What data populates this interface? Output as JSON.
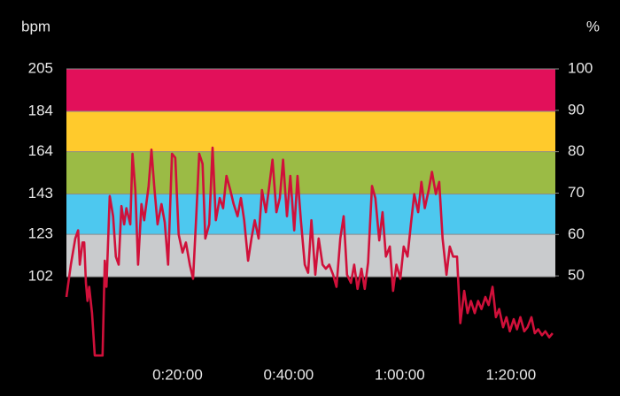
{
  "chart_data": {
    "type": "line",
    "y_label": "bpm",
    "y2_label": "%",
    "color": "#d0103a",
    "zone_colors": [
      "#c9cbcd",
      "#4dc8ef",
      "#9bbb45",
      "#ffca2c",
      "#e2105a"
    ],
    "xlim": [
      0,
      88
    ],
    "xticks": [
      {
        "value": 20,
        "label": "0:20:00"
      },
      {
        "value": 40,
        "label": "0:40:00"
      },
      {
        "value": 60,
        "label": "1:00:00"
      },
      {
        "value": 80,
        "label": "1:20:00"
      }
    ],
    "ylim": [
      60,
      205
    ],
    "yticks": [
      102,
      123,
      143,
      164,
      184,
      205
    ],
    "y2lim": [
      29.3,
      100
    ],
    "y2ticks": [
      50,
      60,
      70,
      80,
      90,
      100
    ],
    "x": [
      0,
      0.8,
      1.6,
      2.1,
      2.4,
      2.9,
      3.2,
      3.5,
      3.8,
      4.1,
      4.6,
      5.1,
      5.9,
      6.5,
      6.9,
      7.2,
      7.8,
      8.4,
      8.9,
      9.4,
      9.9,
      10.4,
      10.8,
      11.5,
      11.9,
      12.4,
      12.9,
      13.5,
      14.0,
      14.8,
      15.3,
      15.8,
      16.4,
      17.1,
      17.7,
      18.3,
      19.0,
      19.6,
      20.2,
      20.9,
      21.5,
      22.2,
      22.8,
      23.4,
      23.9,
      24.5,
      25.0,
      25.7,
      26.3,
      26.9,
      27.6,
      28.2,
      28.8,
      29.5,
      30.1,
      30.8,
      31.4,
      32.0,
      32.7,
      33.3,
      33.9,
      34.6,
      35.2,
      35.9,
      36.5,
      37.1,
      37.8,
      38.4,
      39.0,
      39.7,
      40.3,
      41.0,
      41.6,
      42.2,
      42.9,
      43.5,
      44.1,
      44.8,
      45.4,
      46.1,
      46.7,
      47.3,
      48.0,
      48.6,
      49.3,
      49.9,
      50.5,
      51.2,
      51.8,
      52.4,
      53.1,
      53.7,
      54.3,
      55.0,
      55.6,
      56.3,
      56.9,
      57.5,
      58.2,
      58.8,
      59.4,
      60.1,
      60.7,
      61.4,
      62.0,
      62.6,
      63.3,
      63.9,
      64.5,
      65.2,
      65.8,
      66.5,
      67.1,
      67.7,
      68.4,
      69.0,
      69.6,
      70.3,
      70.9,
      71.6,
      72.2,
      72.8,
      73.5,
      74.1,
      74.7,
      75.4,
      76.0,
      76.7,
      77.3,
      77.9,
      78.6,
      79.2,
      79.8,
      80.5,
      81.1,
      81.7,
      82.4,
      83.0,
      83.7,
      84.3,
      84.9,
      85.6,
      86.2,
      86.9,
      87.5
    ],
    "values": [
      92,
      108,
      121,
      125,
      108,
      119,
      119,
      99,
      90,
      97,
      84,
      63,
      63,
      63,
      110,
      97,
      142,
      132,
      112,
      108,
      137,
      128,
      136,
      128,
      163,
      145,
      108,
      138,
      130,
      147,
      165,
      147,
      128,
      138,
      129,
      108,
      163,
      161,
      123,
      114,
      119,
      108,
      101,
      134,
      163,
      158,
      121,
      128,
      166,
      130,
      141,
      136,
      152,
      145,
      138,
      132,
      141,
      130,
      110,
      121,
      130,
      121,
      145,
      134,
      147,
      160,
      134,
      141,
      160,
      132,
      152,
      125,
      152,
      130,
      108,
      104,
      130,
      103,
      121,
      108,
      106,
      108,
      103,
      97,
      121,
      132,
      103,
      99,
      108,
      96,
      106,
      96,
      109,
      147,
      141,
      120,
      134,
      112,
      117,
      95,
      108,
      101,
      117,
      112,
      128,
      143,
      134,
      149,
      136,
      145,
      154,
      143,
      149,
      121,
      103,
      117,
      112,
      112,
      79,
      95,
      84,
      90,
      84,
      90,
      86,
      92,
      88,
      97,
      82,
      86,
      77,
      82,
      75,
      81,
      76,
      82,
      75,
      77,
      82,
      74,
      76,
      73,
      75,
      72,
      74
    ]
  }
}
